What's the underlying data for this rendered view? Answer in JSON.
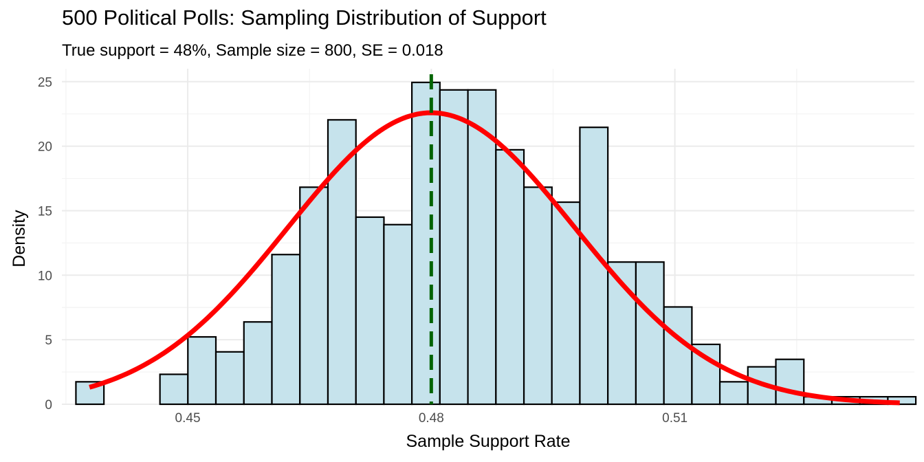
{
  "colors": {
    "bar_fill": "#c6e3ec",
    "bar_stroke": "#000000",
    "curve": "#ff0000",
    "vline": "#006400",
    "grid_major": "#ebebeb",
    "grid_minor": "#f3f3f3"
  },
  "chart_data": {
    "type": "histogram",
    "title": "500 Political Polls: Sampling Distribution of Support",
    "subtitle": "True support = 48%, Sample size = 800, SE = 0.018",
    "xlabel": "Sample Support Rate",
    "ylabel": "Density",
    "xlim": [
      0.4345,
      0.5395
    ],
    "ylim": [
      0,
      26
    ],
    "x_ticks": [
      0.45,
      0.48,
      0.51
    ],
    "x_tick_labels": [
      "0.45",
      "0.48",
      "0.51"
    ],
    "y_ticks": [
      0,
      5,
      10,
      15,
      20,
      25
    ],
    "y_tick_labels": [
      "0",
      "5",
      "10",
      "15",
      "20",
      "25"
    ],
    "bin_width": 0.003448,
    "bins": [
      {
        "x0": 0.43623,
        "density": 1.74
      },
      {
        "x0": 0.43968,
        "density": 0
      },
      {
        "x0": 0.44313,
        "density": 0
      },
      {
        "x0": 0.44658,
        "density": 2.32
      },
      {
        "x0": 0.45002,
        "density": 5.22
      },
      {
        "x0": 0.45347,
        "density": 4.06
      },
      {
        "x0": 0.45692,
        "density": 6.38
      },
      {
        "x0": 0.46037,
        "density": 11.6
      },
      {
        "x0": 0.46382,
        "density": 16.82
      },
      {
        "x0": 0.46727,
        "density": 22.04
      },
      {
        "x0": 0.47072,
        "density": 14.5
      },
      {
        "x0": 0.47416,
        "density": 13.92
      },
      {
        "x0": 0.47761,
        "density": 24.94
      },
      {
        "x0": 0.48106,
        "density": 24.36
      },
      {
        "x0": 0.48451,
        "density": 24.36
      },
      {
        "x0": 0.48796,
        "density": 19.72
      },
      {
        "x0": 0.49141,
        "density": 16.82
      },
      {
        "x0": 0.49485,
        "density": 15.66
      },
      {
        "x0": 0.4983,
        "density": 21.46
      },
      {
        "x0": 0.50175,
        "density": 11.02
      },
      {
        "x0": 0.5052,
        "density": 11.02
      },
      {
        "x0": 0.50865,
        "density": 7.54
      },
      {
        "x0": 0.5121,
        "density": 4.64
      },
      {
        "x0": 0.51554,
        "density": 1.74
      },
      {
        "x0": 0.51899,
        "density": 2.9
      },
      {
        "x0": 0.52244,
        "density": 3.48
      },
      {
        "x0": 0.52589,
        "density": 0.58
      },
      {
        "x0": 0.52934,
        "density": 0.58
      },
      {
        "x0": 0.53279,
        "density": 0.58
      },
      {
        "x0": 0.53623,
        "density": 0.58
      }
    ],
    "normal_curve": {
      "mean": 0.48,
      "sd": 0.01766,
      "x_range": [
        0.4379,
        0.5377
      ]
    },
    "reference_line": {
      "x": 0.48,
      "style": "dashed"
    }
  }
}
